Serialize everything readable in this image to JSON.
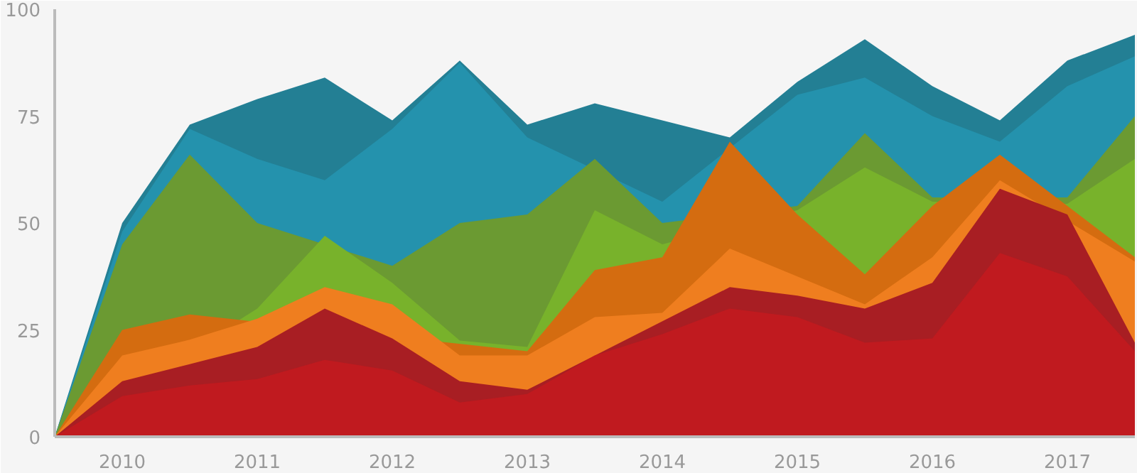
{
  "chart_data": {
    "type": "area",
    "x": [
      2009.5,
      2010,
      2010.5,
      2011,
      2011.5,
      2012,
      2012.5,
      2013,
      2013.5,
      2014,
      2014.5,
      2015,
      2015.5,
      2016,
      2016.5,
      2017,
      2017.5
    ],
    "xlim": [
      2009.5,
      2017.5
    ],
    "xticks": [
      2010,
      2011,
      2012,
      2013,
      2014,
      2015,
      2016,
      2017
    ],
    "ylim": [
      0,
      100
    ],
    "yticks": [
      0,
      25,
      50,
      75,
      100
    ],
    "series": [
      {
        "color": "#237f94",
        "values": [
          0,
          50,
          73,
          79,
          84,
          74,
          88,
          73,
          78,
          74,
          70,
          83,
          93,
          82,
          74,
          88,
          94
        ]
      },
      {
        "color": "#2492ad",
        "values": [
          0,
          48,
          72,
          65,
          60,
          72,
          87.5,
          70,
          null,
          55,
          null,
          80,
          84,
          75,
          69,
          82,
          89
        ]
      },
      {
        "color": "#6b9a32",
        "values": [
          0,
          45,
          66,
          50,
          null,
          40,
          50,
          52,
          65,
          50,
          null,
          54,
          71,
          56,
          null,
          56,
          75
        ]
      },
      {
        "color": "#78b22b",
        "values": [
          0,
          null,
          null,
          30,
          47,
          36,
          22.5,
          21,
          53,
          45,
          null,
          53,
          63,
          55,
          null,
          54.5,
          65
        ]
      },
      {
        "color": "#d46c10",
        "values": [
          0,
          25,
          28.6,
          null,
          null,
          null,
          null,
          20,
          39,
          42,
          69,
          52,
          38,
          54,
          66,
          null,
          42
        ]
      },
      {
        "color": "#ef7e1f",
        "values": [
          0,
          19,
          22.7,
          27.6,
          35,
          31,
          19,
          19,
          28,
          29,
          44,
          37.5,
          31,
          42,
          60,
          null,
          41
        ]
      },
      {
        "color": "#a81e23",
        "values": [
          0,
          13,
          17,
          21,
          30,
          23,
          13,
          11,
          null,
          null,
          35,
          33,
          30,
          36,
          58,
          52,
          22
        ]
      },
      {
        "color": "#c01a1f",
        "values": [
          0,
          9.5,
          12,
          13.5,
          18,
          15.5,
          8,
          10,
          19,
          24,
          30,
          28,
          22,
          23,
          43,
          37.5,
          20
        ]
      }
    ]
  }
}
